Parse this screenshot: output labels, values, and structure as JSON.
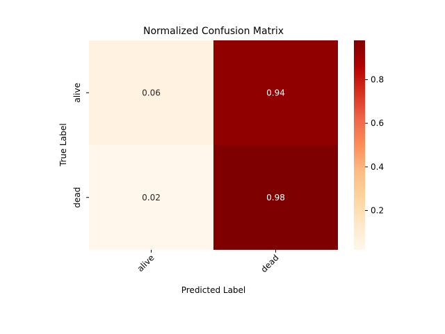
{
  "chart_data": {
    "type": "heatmap",
    "title": "Normalized Confusion Matrix",
    "xlabel": "Predicted Label",
    "ylabel": "True Label",
    "x_categories": [
      "alive",
      "dead"
    ],
    "y_categories": [
      "alive",
      "dead"
    ],
    "values": [
      [
        0.06,
        0.94
      ],
      [
        0.02,
        0.98
      ]
    ],
    "value_labels": [
      [
        "0.06",
        "0.94"
      ],
      [
        "0.02",
        "0.98"
      ]
    ],
    "colorbar": {
      "range": [
        0.02,
        0.98
      ],
      "ticks": [
        "0.2",
        "0.4",
        "0.6",
        "0.8"
      ],
      "tick_values": [
        0.2,
        0.4,
        0.6,
        0.8
      ]
    },
    "colormap": "OrRd",
    "colors": {
      "low": "#fff7ec",
      "high": "#7f0000"
    }
  }
}
